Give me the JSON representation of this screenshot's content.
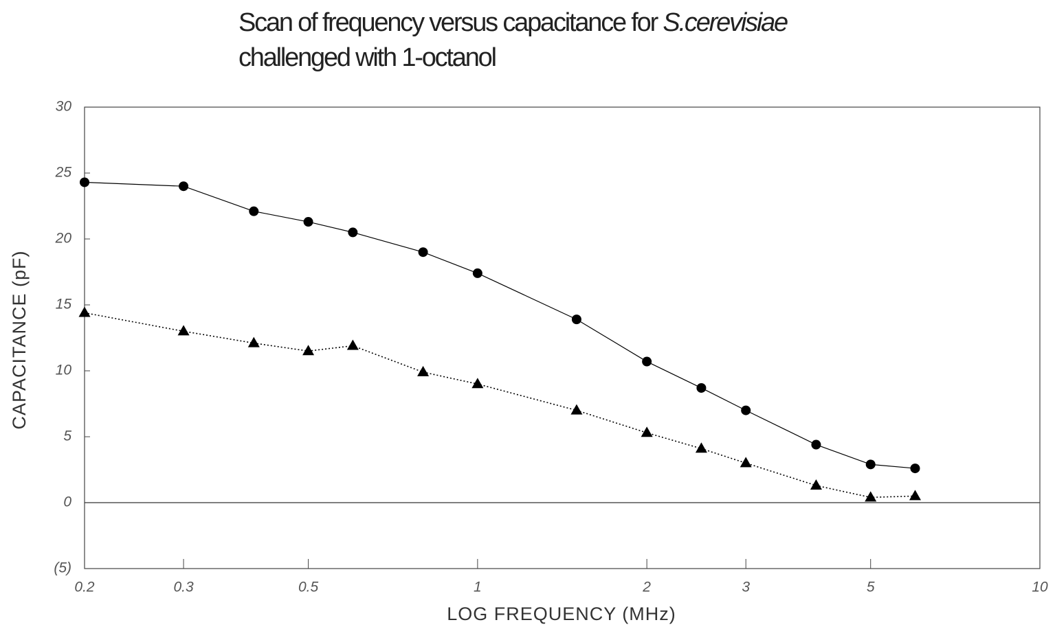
{
  "chart_data": {
    "type": "line",
    "title": [
      "Scan of frequency versus capacitance for",
      "S.cerevisiae",
      "challenged with 1-octanol"
    ],
    "x_label": "LOG FREQUENCY (MHz)",
    "y_label": "CAPACITANCE (pF)",
    "x_scale": "log",
    "x": [
      0.2,
      0.3,
      0.4,
      0.5,
      0.6,
      0.8,
      1,
      1.5,
      2,
      2.5,
      3,
      4,
      5,
      6
    ],
    "series": [
      {
        "color": "#000000",
        "marker": "circle",
        "line_style": "solid",
        "values": [
          24.3,
          24.0,
          22.1,
          21.3,
          20.5,
          19.0,
          17.4,
          13.9,
          10.7,
          8.7,
          7.0,
          4.4,
          2.9,
          2.6
        ]
      },
      {
        "color": "#000000",
        "marker": "triangle",
        "line_style": "dotted",
        "values": [
          14.4,
          13.0,
          12.1,
          11.5,
          11.9,
          9.9,
          9.0,
          7.0,
          5.3,
          4.1,
          3.0,
          1.3,
          0.4,
          0.5
        ]
      }
    ],
    "xlim": [
      0.2,
      10
    ],
    "xticks": [
      0.2,
      0.3,
      0.5,
      1,
      2,
      3,
      5,
      10
    ],
    "ylim": [
      -5,
      30
    ],
    "yticks": [
      {
        "value": -5,
        "label": "(5)"
      },
      0,
      5,
      10,
      15,
      20,
      25,
      30
    ],
    "zero_line": true
  }
}
